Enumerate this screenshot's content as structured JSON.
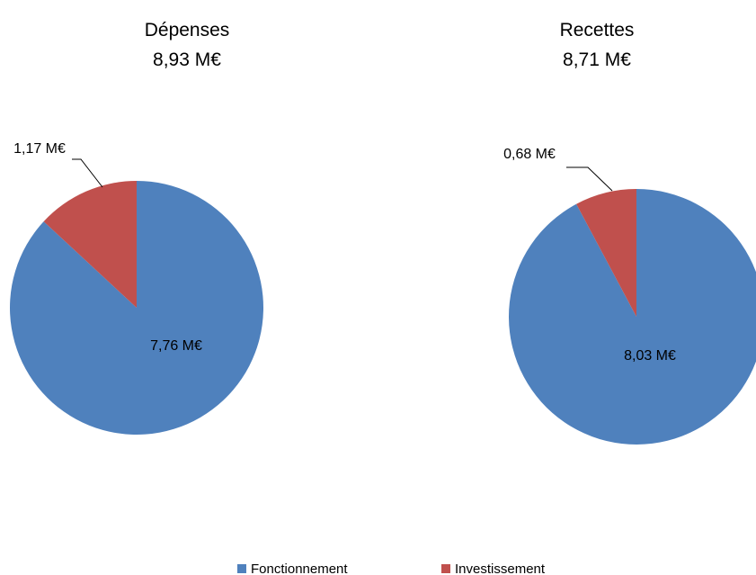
{
  "colors": {
    "fonctionnement": "#4F81BD",
    "investissement": "#C0504D"
  },
  "legend": [
    "Fonctionnement",
    "Investissement"
  ],
  "chart_data": [
    {
      "type": "pie",
      "title": "Dépenses",
      "subtitle": "8,93 M€",
      "slices": [
        {
          "name": "Fonctionnement",
          "value": 7.76,
          "label": "7,76 M€"
        },
        {
          "name": "Investissement",
          "value": 1.17,
          "label": "1,17 M€"
        }
      ]
    },
    {
      "type": "pie",
      "title": "Recettes",
      "subtitle": "8,71 M€",
      "slices": [
        {
          "name": "Fonctionnement",
          "value": 8.03,
          "label": "8,03 M€"
        },
        {
          "name": "Investissement",
          "value": 0.68,
          "label": "0,68 M€"
        }
      ]
    }
  ]
}
